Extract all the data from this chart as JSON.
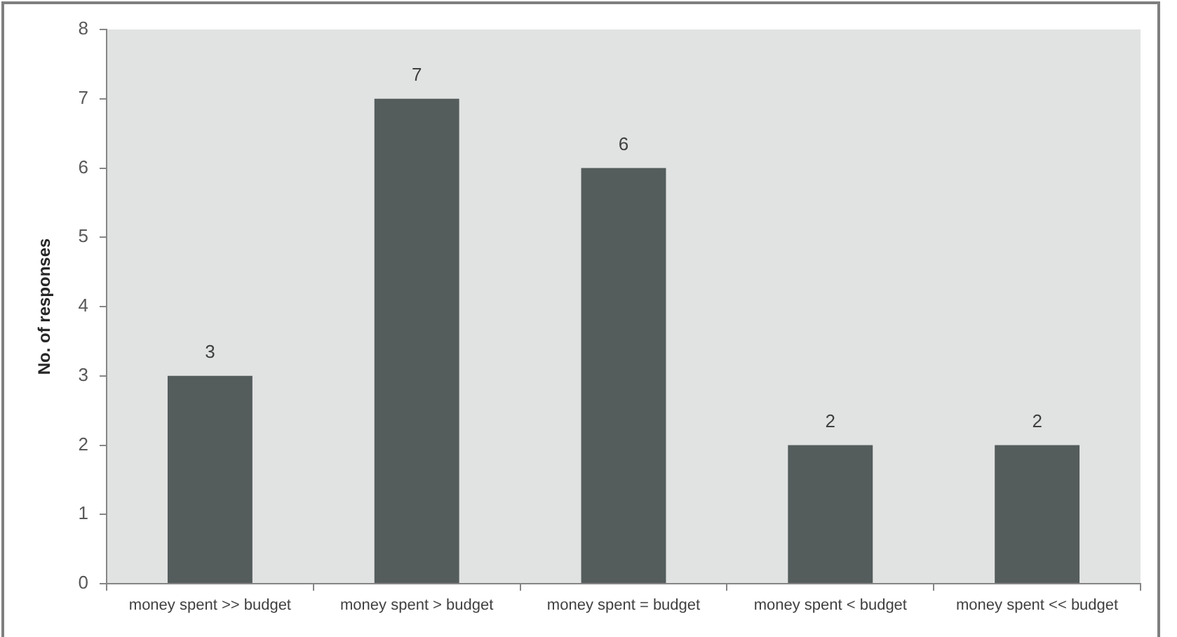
{
  "chart_data": {
    "type": "bar",
    "ylabel": "No. of responses",
    "categories": [
      "money spent >> budget",
      "money spent > budget",
      "money spent = budget",
      "money spent < budget",
      "money spent << budget"
    ],
    "values": [
      3,
      7,
      6,
      2,
      2
    ],
    "color": "#545c5c",
    "ylim": [
      0,
      8
    ],
    "yticks": [
      0,
      1,
      2,
      3,
      4,
      5,
      6,
      7,
      8
    ],
    "grid": false,
    "legend": false,
    "data_labels": true
  }
}
